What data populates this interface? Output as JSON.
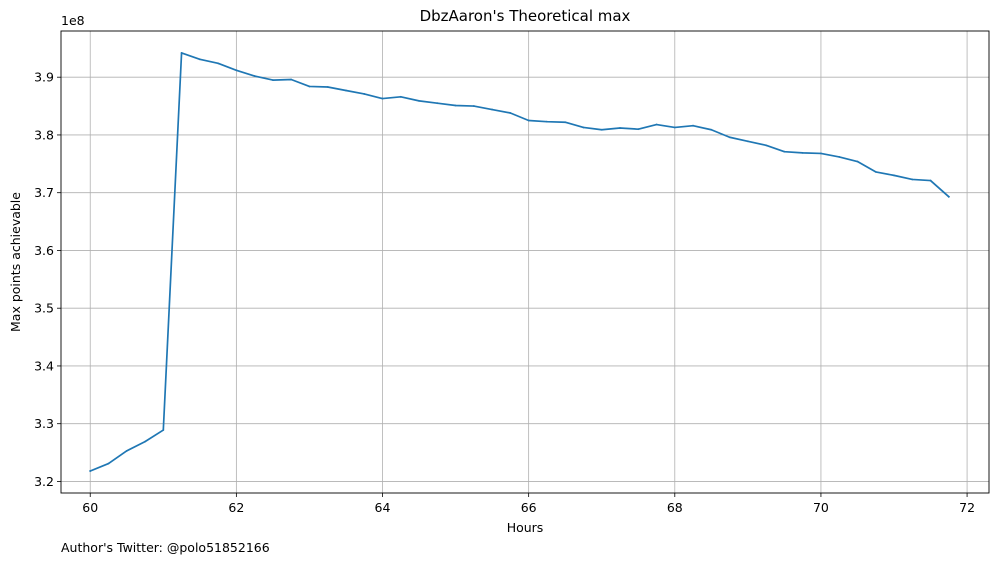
{
  "chart_data": {
    "type": "line",
    "title": "DbzAaron's Theoretical max",
    "xlabel": "Hours",
    "ylabel": "Max points achievable",
    "y_multiplier": "1e8",
    "footer": "Author's Twitter: @polo51852166",
    "xlim": [
      59.6,
      72.3
    ],
    "ylim": [
      3.18,
      3.98
    ],
    "x_ticks": [
      60,
      62,
      64,
      66,
      68,
      70,
      72
    ],
    "x_tick_labels": [
      "60",
      "62",
      "64",
      "66",
      "68",
      "70",
      "72"
    ],
    "y_ticks": [
      3.2,
      3.3,
      3.4,
      3.5,
      3.6,
      3.7,
      3.8,
      3.9
    ],
    "y_tick_labels": [
      "3.2",
      "3.3",
      "3.4",
      "3.5",
      "3.6",
      "3.7",
      "3.8",
      "3.9"
    ],
    "grid": true,
    "line_color": "#1f77b4",
    "series": [
      {
        "x": [
          60.0,
          60.25,
          60.5,
          60.75,
          61.0,
          61.25,
          61.5,
          61.75,
          62.0,
          62.25,
          62.5,
          62.75,
          63.0,
          63.25,
          63.5,
          63.75,
          64.0,
          64.25,
          64.5,
          64.75,
          65.0,
          65.25,
          65.5,
          65.75,
          66.0,
          66.25,
          66.5,
          66.75,
          67.0,
          67.25,
          67.5,
          67.75,
          68.0,
          68.25,
          68.5,
          68.75,
          69.0,
          69.25,
          69.5,
          69.75,
          70.0,
          70.25,
          70.5,
          70.75,
          71.0,
          71.25,
          71.5,
          71.75
        ],
        "values": [
          3.218,
          3.231,
          3.253,
          3.269,
          3.289,
          3.942,
          3.931,
          3.924,
          3.912,
          3.902,
          3.895,
          3.896,
          3.884,
          3.883,
          3.877,
          3.871,
          3.863,
          3.866,
          3.859,
          3.855,
          3.851,
          3.85,
          3.844,
          3.838,
          3.825,
          3.823,
          3.822,
          3.813,
          3.809,
          3.812,
          3.81,
          3.818,
          3.813,
          3.816,
          3.809,
          3.796,
          3.789,
          3.782,
          3.771,
          3.769,
          3.768,
          3.762,
          3.754,
          3.736,
          3.73,
          3.723,
          3.721,
          3.693
        ]
      }
    ]
  }
}
